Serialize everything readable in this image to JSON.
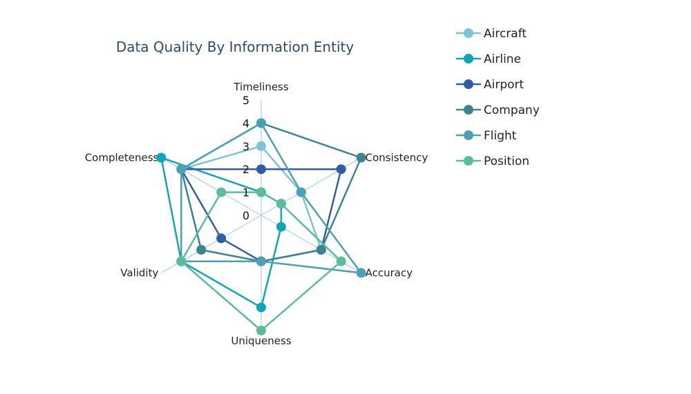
{
  "chart_data": {
    "type": "radar",
    "title": "Data Quality By Information Entity",
    "axes": [
      "Timeliness",
      "Consistency",
      "Accuracy",
      "Uniqueness",
      "Validity",
      "Completeness"
    ],
    "radial_range": [
      0,
      5
    ],
    "radial_ticks": [
      "0",
      "1",
      "2",
      "3",
      "4",
      "5"
    ],
    "legend_position": "top-right",
    "series": [
      {
        "name": "Aircraft",
        "color": "#7cc4d1",
        "values": [
          3,
          2,
          3,
          2,
          3,
          4
        ]
      },
      {
        "name": "Airline",
        "color": "#0ea5b8",
        "values": [
          1,
          1,
          1,
          4,
          4,
          5
        ]
      },
      {
        "name": "Airport",
        "color": "#2e5ea8",
        "values": [
          2,
          4,
          3,
          2,
          2,
          4
        ]
      },
      {
        "name": "Company",
        "color": "#3a8496",
        "values": [
          4,
          5,
          3,
          2,
          3,
          4
        ]
      },
      {
        "name": "Flight",
        "color": "#4ba0b8",
        "values": [
          4,
          2,
          5,
          2,
          4,
          4
        ]
      },
      {
        "name": "Position",
        "color": "#58bd9d",
        "values": [
          1,
          1,
          4,
          5,
          4,
          2
        ]
      }
    ]
  }
}
